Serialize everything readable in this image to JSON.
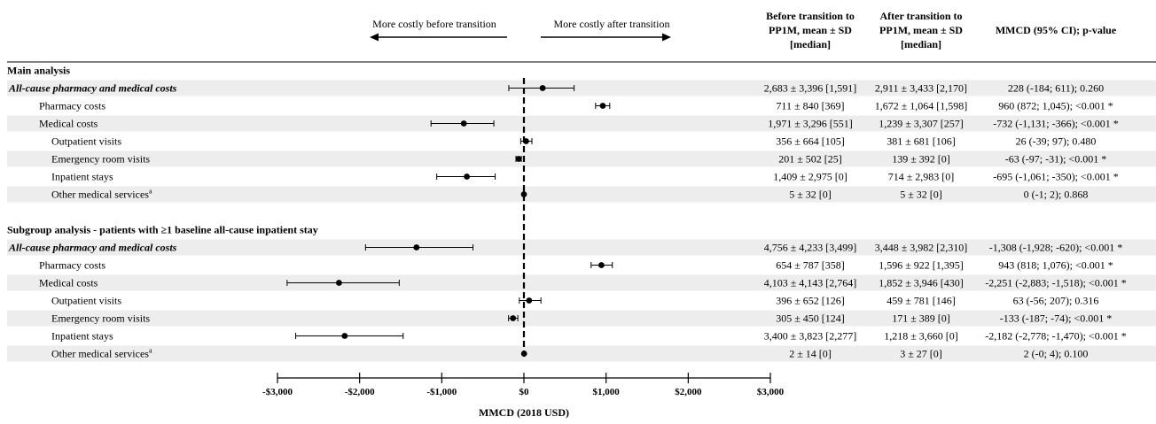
{
  "headers": {
    "before": [
      "Before transition to",
      "PP1M, mean ± SD",
      "[median]"
    ],
    "after": [
      "After transition to",
      "PP1M, mean ± SD",
      "[median]"
    ],
    "mmcd": "MMCD (95% CI); p-value"
  },
  "direction": {
    "left": "More costly before transition",
    "right": "More costly after transition"
  },
  "chart_data": {
    "type": "forest",
    "xlabel": "MMCD (2018 USD)",
    "xlim": [
      -3000,
      3000
    ],
    "xticks": [
      {
        "value": -3000,
        "label": "-$3,000"
      },
      {
        "value": -2000,
        "label": "-$2,000"
      },
      {
        "value": -1000,
        "label": "-$1,000"
      },
      {
        "value": 0,
        "label": "$0"
      },
      {
        "value": 1000,
        "label": "$1,000"
      },
      {
        "value": 2000,
        "label": "$2,000"
      },
      {
        "value": 3000,
        "label": "$3,000"
      }
    ],
    "rows": [
      {
        "kind": "section",
        "label": "Main analysis"
      },
      {
        "kind": "data",
        "label": "All-cause pharmacy and medical costs",
        "style": "bold-italic",
        "indent": 0,
        "shade": true,
        "before": "2,683 ± 3,396 [1,591]",
        "after": "2,911 ± 3,433 [2,170]",
        "mmcd": "228 (-184; 611); 0.260",
        "est": 228,
        "lo": -184,
        "hi": 611
      },
      {
        "kind": "data",
        "label": "Pharmacy costs",
        "indent": 1,
        "shade": false,
        "before": "711 ± 840 [369]",
        "after": "1,672 ± 1,064 [1,598]",
        "mmcd": "960 (872; 1,045); <0.001 *",
        "est": 960,
        "lo": 872,
        "hi": 1045
      },
      {
        "kind": "data",
        "label": "Medical costs",
        "indent": 1,
        "shade": true,
        "before": "1,971 ± 3,296 [551]",
        "after": "1,239 ± 3,307 [257]",
        "mmcd": "-732 (-1,131; -366); <0.001 *",
        "est": -732,
        "lo": -1131,
        "hi": -366
      },
      {
        "kind": "data",
        "label": "Outpatient visits",
        "indent": 2,
        "shade": false,
        "before": "356 ± 664 [105]",
        "after": "381 ± 681 [106]",
        "mmcd": "26 (-39; 97); 0.480",
        "est": 26,
        "lo": -39,
        "hi": 97
      },
      {
        "kind": "data",
        "label": "Emergency room visits",
        "indent": 2,
        "shade": true,
        "before": "201 ± 502 [25]",
        "after": "139 ± 392 [0]",
        "mmcd": "-63 (-97; -31); <0.001 *",
        "est": -63,
        "lo": -97,
        "hi": -31
      },
      {
        "kind": "data",
        "label": "Inpatient stays",
        "indent": 2,
        "shade": false,
        "before": "1,409 ± 2,975 [0]",
        "after": "714 ± 2,983 [0]",
        "mmcd": "-695 (-1,061; -350); <0.001 *",
        "est": -695,
        "lo": -1061,
        "hi": -350
      },
      {
        "kind": "data",
        "label": "Other medical services",
        "sup": "a",
        "indent": 2,
        "shade": true,
        "before": "5 ± 32 [0]",
        "after": "5 ± 32 [0]",
        "mmcd": "0 (-1; 2); 0.868",
        "est": 0,
        "lo": -1,
        "hi": 2
      },
      {
        "kind": "blank"
      },
      {
        "kind": "section",
        "label": "Subgroup analysis - patients with ≥1 baseline all-cause inpatient stay"
      },
      {
        "kind": "data",
        "label": "All-cause pharmacy and medical costs",
        "style": "bold-italic",
        "indent": 0,
        "shade": true,
        "before": "4,756 ± 4,233 [3,499]",
        "after": "3,448 ± 3,982 [2,310]",
        "mmcd": "-1,308 (-1,928; -620); <0.001 *",
        "est": -1308,
        "lo": -1928,
        "hi": -620
      },
      {
        "kind": "data",
        "label": "Pharmacy costs",
        "indent": 1,
        "shade": false,
        "before": "654 ± 787 [358]",
        "after": "1,596 ± 922 [1,395]",
        "mmcd": "943 (818; 1,076); <0.001 *",
        "est": 943,
        "lo": 818,
        "hi": 1076
      },
      {
        "kind": "data",
        "label": "Medical costs",
        "indent": 1,
        "shade": true,
        "before": "4,103 ± 4,143 [2,764]",
        "after": "1,852 ± 3,946 [430]",
        "mmcd": "-2,251 (-2,883; -1,518); <0.001 *",
        "est": -2251,
        "lo": -2883,
        "hi": -1518
      },
      {
        "kind": "data",
        "label": "Outpatient visits",
        "indent": 2,
        "shade": false,
        "before": "396 ± 652 [126]",
        "after": "459 ± 781 [146]",
        "mmcd": "63 (-56; 207); 0.316",
        "est": 63,
        "lo": -56,
        "hi": 207
      },
      {
        "kind": "data",
        "label": "Emergency room visits",
        "indent": 2,
        "shade": true,
        "before": "305 ± 450 [124]",
        "after": "171 ± 389 [0]",
        "mmcd": "-133 (-187; -74); <0.001 *",
        "est": -133,
        "lo": -187,
        "hi": -74
      },
      {
        "kind": "data",
        "label": "Inpatient stays",
        "indent": 2,
        "shade": false,
        "before": "3,400 ± 3,823 [2,277]",
        "after": "1,218 ± 3,660 [0]",
        "mmcd": "-2,182 (-2,778; -1,470); <0.001 *",
        "est": -2182,
        "lo": -2778,
        "hi": -1470
      },
      {
        "kind": "data",
        "label": "Other medical services",
        "sup": "a",
        "indent": 2,
        "shade": true,
        "before": "2 ± 14 [0]",
        "after": "3 ± 27 [0]",
        "mmcd": "2 (-0; 4); 0.100",
        "est": 2,
        "lo": 0,
        "hi": 4
      }
    ]
  }
}
